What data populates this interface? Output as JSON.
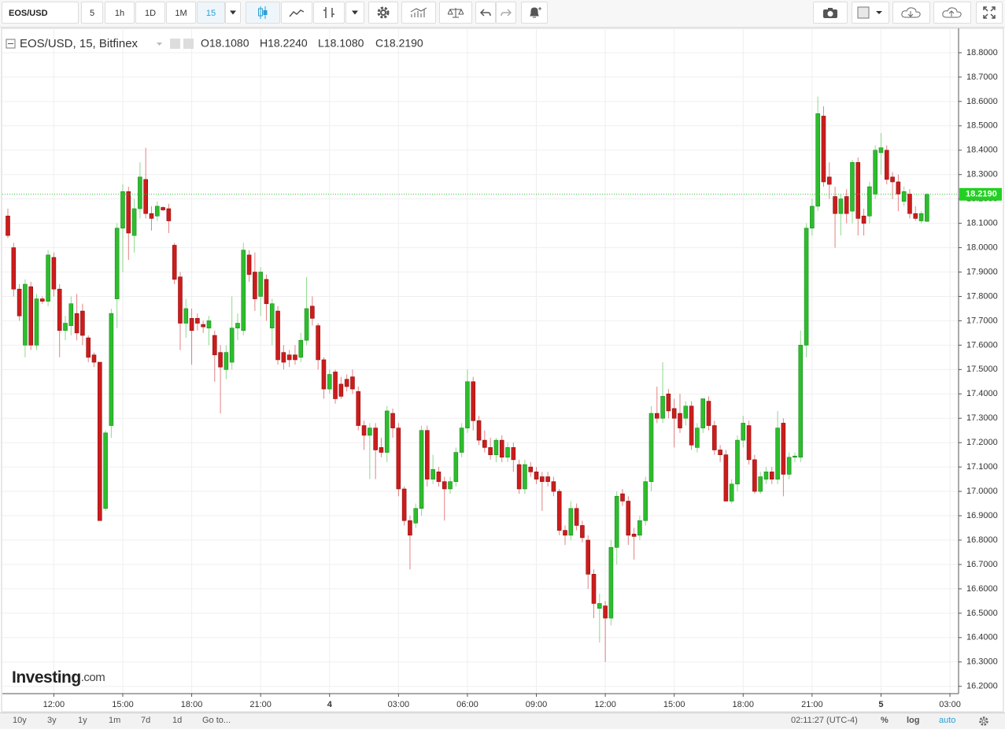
{
  "toolbar": {
    "symbol": "EOS/USD",
    "intervals": [
      "5",
      "1h",
      "1D",
      "1M",
      "15"
    ]
  },
  "chart_data": {
    "type": "candlestick",
    "title": "EOS/USD, 15, Bitfinex",
    "ohlc_legend": [
      "O18.1080",
      "H18.2240",
      "L18.1080",
      "C18.2190"
    ],
    "up_color": "#2dbd2d",
    "down_color": "#cc1c1c",
    "grid": true,
    "xlim": [
      -0.96,
      165.5
    ],
    "xticks": [
      {
        "value": 8,
        "label": "12:00"
      },
      {
        "value": 20,
        "label": "15:00"
      },
      {
        "value": 32,
        "label": "18:00"
      },
      {
        "value": 44,
        "label": "21:00"
      },
      {
        "value": 56,
        "label": "4"
      },
      {
        "value": 68,
        "label": "03:00"
      },
      {
        "value": 80,
        "label": "06:00"
      },
      {
        "value": 92,
        "label": "09:00"
      },
      {
        "value": 104,
        "label": "12:00"
      },
      {
        "value": 116,
        "label": "15:00"
      },
      {
        "value": 128,
        "label": "18:00"
      },
      {
        "value": 140,
        "label": "21:00"
      },
      {
        "value": 152,
        "label": "5"
      },
      {
        "value": 164,
        "label": "03:00"
      }
    ],
    "ylim": [
      16.17,
      18.9
    ],
    "yticks": [
      {
        "value": 16.2,
        "label": "16.2000"
      },
      {
        "value": 16.3,
        "label": "16.3000"
      },
      {
        "value": 16.4,
        "label": "16.4000"
      },
      {
        "value": 16.5,
        "label": "16.5000"
      },
      {
        "value": 16.6,
        "label": "16.6000"
      },
      {
        "value": 16.7,
        "label": "16.7000"
      },
      {
        "value": 16.8,
        "label": "16.8000"
      },
      {
        "value": 16.9,
        "label": "16.9000"
      },
      {
        "value": 17.0,
        "label": "17.0000"
      },
      {
        "value": 17.1,
        "label": "17.1000"
      },
      {
        "value": 17.2,
        "label": "17.2000"
      },
      {
        "value": 17.3,
        "label": "17.3000"
      },
      {
        "value": 17.4,
        "label": "17.4000"
      },
      {
        "value": 17.5,
        "label": "17.5000"
      },
      {
        "value": 17.6,
        "label": "17.6000"
      },
      {
        "value": 17.7,
        "label": "17.7000"
      },
      {
        "value": 17.8,
        "label": "17.8000"
      },
      {
        "value": 17.9,
        "label": "17.9000"
      },
      {
        "value": 18.0,
        "label": "18.0000"
      },
      {
        "value": 18.1,
        "label": "18.1000"
      },
      {
        "value": 18.2,
        "label": "18.2000"
      },
      {
        "value": 18.3,
        "label": "18.3000"
      },
      {
        "value": 18.4,
        "label": "18.4000"
      },
      {
        "value": 18.5,
        "label": "18.5000"
      },
      {
        "value": 18.6,
        "label": "18.6000"
      },
      {
        "value": 18.7,
        "label": "18.7000"
      },
      {
        "value": 18.8,
        "label": "18.8000"
      }
    ],
    "last_price": {
      "value": 18.219,
      "label": "18.2190"
    },
    "candles": [
      [
        18.13,
        18.16,
        18.04,
        18.05
      ],
      [
        18.0,
        18.02,
        17.8,
        17.83
      ],
      [
        17.83,
        17.85,
        17.7,
        17.72
      ],
      [
        17.6,
        17.87,
        17.55,
        17.85
      ],
      [
        17.84,
        17.86,
        17.58,
        17.6
      ],
      [
        17.6,
        17.81,
        17.58,
        17.79
      ],
      [
        17.79,
        17.8,
        17.77,
        17.78
      ],
      [
        17.78,
        17.99,
        17.76,
        17.97
      ],
      [
        17.96,
        17.98,
        17.8,
        17.83
      ],
      [
        17.83,
        17.85,
        17.55,
        17.66
      ],
      [
        17.66,
        17.72,
        17.62,
        17.69
      ],
      [
        17.68,
        17.8,
        17.64,
        17.77
      ],
      [
        17.73,
        17.81,
        17.62,
        17.65
      ],
      [
        17.74,
        17.77,
        17.6,
        17.64
      ],
      [
        17.63,
        17.64,
        17.53,
        17.55
      ],
      [
        17.56,
        17.57,
        17.51,
        17.53
      ],
      [
        17.53,
        17.53,
        16.88,
        16.88
      ],
      [
        16.93,
        17.25,
        16.92,
        17.24
      ],
      [
        17.27,
        17.75,
        17.22,
        17.73
      ],
      [
        17.79,
        18.1,
        17.67,
        18.08
      ],
      [
        18.08,
        18.26,
        17.9,
        18.23
      ],
      [
        18.23,
        18.25,
        17.95,
        18.06
      ],
      [
        18.05,
        18.2,
        17.98,
        18.16
      ],
      [
        18.16,
        18.35,
        18.12,
        18.29
      ],
      [
        18.28,
        18.41,
        18.12,
        18.14
      ],
      [
        18.14,
        18.17,
        18.07,
        18.12
      ],
      [
        18.13,
        18.19,
        18.11,
        18.17
      ],
      [
        18.165,
        18.17,
        18.15,
        18.155
      ],
      [
        18.16,
        18.18,
        18.06,
        18.11
      ],
      [
        18.01,
        18.02,
        17.85,
        17.87
      ],
      [
        17.88,
        17.9,
        17.58,
        17.69
      ],
      [
        17.69,
        17.79,
        17.63,
        17.75
      ],
      [
        17.71,
        17.75,
        17.52,
        17.66
      ],
      [
        17.71,
        17.73,
        17.66,
        17.69
      ],
      [
        17.685,
        17.7,
        17.65,
        17.675
      ],
      [
        17.67,
        17.72,
        17.6,
        17.7
      ],
      [
        17.64,
        17.66,
        17.45,
        17.56
      ],
      [
        17.57,
        17.6,
        17.32,
        17.51
      ],
      [
        17.5,
        17.6,
        17.46,
        17.57
      ],
      [
        17.53,
        17.8,
        17.5,
        17.67
      ],
      [
        17.67,
        17.73,
        17.62,
        17.69
      ],
      [
        17.66,
        18.02,
        17.64,
        17.99
      ],
      [
        17.97,
        17.99,
        17.86,
        17.89
      ],
      [
        17.9,
        17.98,
        17.74,
        17.79
      ],
      [
        17.8,
        17.92,
        17.72,
        17.9
      ],
      [
        17.87,
        17.89,
        17.7,
        17.77
      ],
      [
        17.67,
        17.79,
        17.6,
        17.77
      ],
      [
        17.74,
        17.76,
        17.52,
        17.54
      ],
      [
        17.57,
        17.6,
        17.5,
        17.53
      ],
      [
        17.56,
        17.58,
        17.51,
        17.54
      ],
      [
        17.56,
        17.6,
        17.52,
        17.54
      ],
      [
        17.55,
        17.65,
        17.53,
        17.62
      ],
      [
        17.62,
        17.88,
        17.6,
        17.75
      ],
      [
        17.76,
        17.8,
        17.68,
        17.71
      ],
      [
        17.68,
        17.69,
        17.5,
        17.54
      ],
      [
        17.54,
        17.55,
        17.38,
        17.42
      ],
      [
        17.42,
        17.5,
        17.4,
        17.48
      ],
      [
        17.49,
        17.5,
        17.36,
        17.38
      ],
      [
        17.44,
        17.47,
        17.38,
        17.39
      ],
      [
        17.46,
        17.48,
        17.41,
        17.43
      ],
      [
        17.47,
        17.5,
        17.4,
        17.42
      ],
      [
        17.41,
        17.43,
        17.25,
        17.27
      ],
      [
        17.27,
        17.29,
        17.17,
        17.23
      ],
      [
        17.23,
        17.28,
        17.05,
        17.26
      ],
      [
        17.26,
        17.28,
        17.05,
        17.17
      ],
      [
        17.18,
        17.22,
        17.14,
        17.16
      ],
      [
        17.16,
        17.35,
        17.12,
        17.33
      ],
      [
        17.32,
        17.34,
        17.22,
        17.26
      ],
      [
        17.26,
        17.28,
        16.98,
        17.01
      ],
      [
        17.01,
        17.02,
        16.86,
        16.88
      ],
      [
        16.88,
        16.9,
        16.68,
        16.82
      ],
      [
        16.87,
        16.95,
        16.85,
        16.93
      ],
      [
        16.93,
        17.27,
        16.9,
        17.25
      ],
      [
        17.25,
        17.27,
        17.02,
        17.05
      ],
      [
        17.05,
        17.15,
        17.03,
        17.09
      ],
      [
        17.08,
        17.1,
        17.02,
        17.04
      ],
      [
        17.04,
        17.06,
        16.88,
        17.01
      ],
      [
        17.01,
        17.06,
        16.99,
        17.04
      ],
      [
        17.04,
        17.18,
        17.02,
        17.16
      ],
      [
        17.16,
        17.28,
        17.14,
        17.26
      ],
      [
        17.26,
        17.5,
        17.24,
        17.45
      ],
      [
        17.45,
        17.47,
        17.25,
        17.29
      ],
      [
        17.29,
        17.31,
        17.19,
        17.21
      ],
      [
        17.21,
        17.25,
        17.16,
        17.18
      ],
      [
        17.18,
        17.22,
        17.13,
        17.15
      ],
      [
        17.15,
        17.22,
        17.12,
        17.21
      ],
      [
        17.21,
        17.23,
        17.12,
        17.14
      ],
      [
        17.14,
        17.2,
        17.12,
        17.18
      ],
      [
        17.18,
        17.2,
        17.08,
        17.13
      ],
      [
        17.11,
        17.13,
        16.99,
        17.01
      ],
      [
        17.01,
        17.13,
        16.99,
        17.11
      ],
      [
        17.1,
        17.12,
        17.06,
        17.08
      ],
      [
        17.08,
        17.1,
        17.03,
        17.05
      ],
      [
        17.06,
        17.08,
        16.92,
        17.04
      ],
      [
        17.06,
        17.08,
        17.02,
        17.04
      ],
      [
        17.04,
        17.06,
        16.98,
        17.0
      ],
      [
        17.0,
        17.01,
        16.82,
        16.84
      ],
      [
        16.84,
        16.86,
        16.78,
        16.82
      ],
      [
        16.82,
        16.96,
        16.8,
        16.93
      ],
      [
        16.93,
        16.95,
        16.84,
        16.86
      ],
      [
        16.86,
        16.88,
        16.79,
        16.81
      ],
      [
        16.8,
        16.82,
        16.6,
        16.66
      ],
      [
        16.66,
        16.68,
        16.48,
        16.54
      ],
      [
        16.52,
        16.58,
        16.38,
        16.54
      ],
      [
        16.53,
        16.55,
        16.3,
        16.48
      ],
      [
        16.48,
        16.8,
        16.45,
        16.77
      ],
      [
        16.77,
        17.0,
        16.7,
        16.98
      ],
      [
        16.99,
        17.01,
        16.94,
        16.96
      ],
      [
        16.96,
        16.98,
        16.78,
        16.82
      ],
      [
        16.825,
        16.85,
        16.72,
        16.815
      ],
      [
        16.82,
        16.9,
        16.8,
        16.88
      ],
      [
        16.88,
        17.06,
        16.86,
        17.04
      ],
      [
        17.04,
        17.35,
        17.0,
        17.32
      ],
      [
        17.32,
        17.43,
        17.28,
        17.3
      ],
      [
        17.3,
        17.53,
        17.28,
        17.39
      ],
      [
        17.4,
        17.42,
        17.3,
        17.33
      ],
      [
        17.34,
        17.38,
        17.18,
        17.3
      ],
      [
        17.32,
        17.4,
        17.24,
        17.26
      ],
      [
        17.3,
        17.37,
        17.27,
        17.35
      ],
      [
        17.35,
        17.37,
        17.17,
        17.19
      ],
      [
        17.18,
        17.28,
        17.16,
        17.26
      ],
      [
        17.26,
        17.38,
        17.24,
        17.38
      ],
      [
        17.37,
        17.39,
        17.25,
        17.27
      ],
      [
        17.27,
        17.29,
        17.15,
        17.17
      ],
      [
        17.17,
        17.19,
        17.12,
        17.15
      ],
      [
        17.15,
        17.17,
        16.96,
        16.96
      ],
      [
        16.96,
        17.05,
        16.95,
        17.03
      ],
      [
        17.03,
        17.23,
        17.0,
        17.21
      ],
      [
        17.21,
        17.31,
        17.18,
        17.28
      ],
      [
        17.27,
        17.29,
        17.11,
        17.13
      ],
      [
        17.13,
        17.15,
        16.99,
        17.0
      ],
      [
        17.0,
        17.08,
        16.99,
        17.06
      ],
      [
        17.05,
        17.1,
        17.03,
        17.08
      ],
      [
        17.08,
        17.1,
        17.03,
        17.05
      ],
      [
        17.05,
        17.33,
        17.03,
        17.26
      ],
      [
        17.28,
        17.3,
        16.98,
        17.07
      ],
      [
        17.07,
        17.16,
        17.05,
        17.14
      ],
      [
        17.14,
        17.16,
        17.12,
        17.145
      ],
      [
        17.14,
        17.66,
        17.12,
        17.6
      ],
      [
        17.6,
        18.1,
        17.55,
        18.08
      ],
      [
        18.08,
        18.2,
        18.05,
        18.17
      ],
      [
        18.17,
        18.62,
        18.15,
        18.55
      ],
      [
        18.54,
        18.58,
        18.25,
        18.27
      ],
      [
        18.29,
        18.35,
        18.2,
        18.26
      ],
      [
        18.21,
        18.25,
        18.0,
        18.14
      ],
      [
        18.14,
        18.22,
        18.05,
        18.2
      ],
      [
        18.21,
        18.24,
        18.1,
        18.14
      ],
      [
        18.15,
        18.36,
        18.1,
        18.35
      ],
      [
        18.35,
        18.37,
        18.05,
        18.12
      ],
      [
        18.13,
        18.16,
        18.05,
        18.1
      ],
      [
        18.13,
        18.27,
        18.1,
        18.25
      ],
      [
        18.22,
        18.42,
        18.2,
        18.4
      ],
      [
        18.39,
        18.47,
        18.3,
        18.41
      ],
      [
        18.4,
        18.42,
        18.26,
        18.28
      ],
      [
        18.29,
        18.31,
        18.2,
        18.27
      ],
      [
        18.27,
        18.3,
        18.15,
        18.22
      ],
      [
        18.19,
        18.25,
        18.17,
        18.23
      ],
      [
        18.22,
        18.24,
        18.12,
        18.14
      ],
      [
        18.14,
        18.17,
        18.11,
        18.12
      ],
      [
        18.11,
        18.15,
        18.1,
        18.14
      ],
      [
        18.108,
        18.224,
        18.108,
        18.219
      ]
    ]
  },
  "watermark": [
    "Investing",
    ".com"
  ],
  "footer": {
    "ranges": [
      "10y",
      "3y",
      "1y",
      "1m",
      "7d",
      "1d"
    ],
    "goto": "Go to...",
    "clock": "02:11:27 (UTC-4)",
    "options": [
      "%",
      "log",
      "auto"
    ]
  }
}
